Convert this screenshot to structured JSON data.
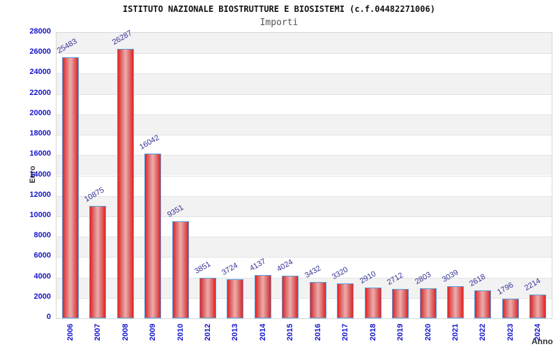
{
  "header": {
    "title": "ISTITUTO NAZIONALE BIOSTRUTTURE E BIOSISTEMI (c.f.04482271006)",
    "subtitle": "Importi"
  },
  "chart_data": {
    "type": "bar",
    "title": "ISTITUTO NAZIONALE BIOSTRUTTURE E BIOSISTEMI (c.f.04482271006)",
    "subtitle": "Importi",
    "xlabel": "Anno",
    "ylabel": "Euro",
    "categories": [
      "2006",
      "2007",
      "2008",
      "2009",
      "2010",
      "2012",
      "2013",
      "2014",
      "2015",
      "2016",
      "2017",
      "2018",
      "2019",
      "2020",
      "2021",
      "2022",
      "2023",
      "2024"
    ],
    "values": [
      25483,
      10875,
      26287,
      16042,
      9351,
      3851,
      3724,
      4137,
      4024,
      3432,
      3320,
      2910,
      2712,
      2803,
      3039,
      2618,
      1796,
      2214
    ],
    "ylim": [
      0,
      28000
    ],
    "ytick_step": 2000,
    "yticks": [
      0,
      2000,
      4000,
      6000,
      8000,
      10000,
      12000,
      14000,
      16000,
      18000,
      20000,
      22000,
      24000,
      26000,
      28000
    ],
    "grid": "horizontal alternating bands with gridlines every 2000",
    "legend": "none",
    "colors": {
      "bar_fill": "#e32222",
      "bar_fill_highlight": "#f0abab",
      "bar_border": "#55a0dd",
      "axis_tick_text": "#1414cc",
      "bar_value_text": "#333399",
      "band_gray": "#f2f2f2",
      "gridline": "#e2e2e2",
      "frame": "#d6d6d6",
      "title_text": "#111111",
      "subtitle_text": "#555555",
      "axis_title_text": "#333333"
    }
  }
}
